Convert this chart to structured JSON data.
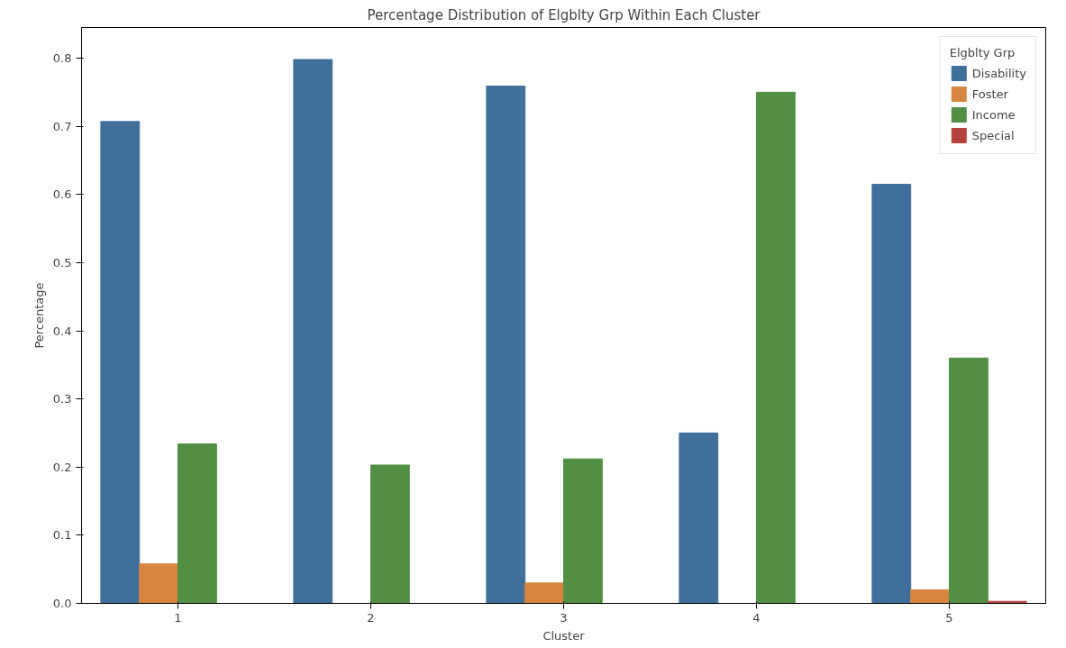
{
  "chart_data": {
    "type": "bar",
    "title": "Percentage Distribution of Elgblty Grp Within Each Cluster",
    "xlabel": "Cluster",
    "ylabel": "Percentage",
    "legend_title": "Elgblty Grp",
    "categories": [
      "1",
      "2",
      "3",
      "4",
      "5"
    ],
    "series": [
      {
        "name": "Disability",
        "color": "#3f6f9a",
        "values": [
          0.707,
          0.798,
          0.759,
          0.25,
          0.615
        ]
      },
      {
        "name": "Foster",
        "color": "#d58540",
        "values": [
          0.058,
          null,
          0.03,
          null,
          0.02
        ]
      },
      {
        "name": "Income",
        "color": "#528f45",
        "values": [
          0.234,
          0.203,
          0.212,
          0.75,
          0.36
        ]
      },
      {
        "name": "Special",
        "color": "#b5413f",
        "values": [
          null,
          null,
          null,
          null,
          0.003
        ]
      }
    ],
    "ylim": [
      0,
      0.845
    ],
    "yticks": [
      {
        "value": 0,
        "label": "0.0"
      },
      0.1,
      0.2,
      0.3,
      0.4,
      0.5,
      0.6,
      0.7,
      0.8
    ],
    "grid": false,
    "legend": "top right"
  }
}
